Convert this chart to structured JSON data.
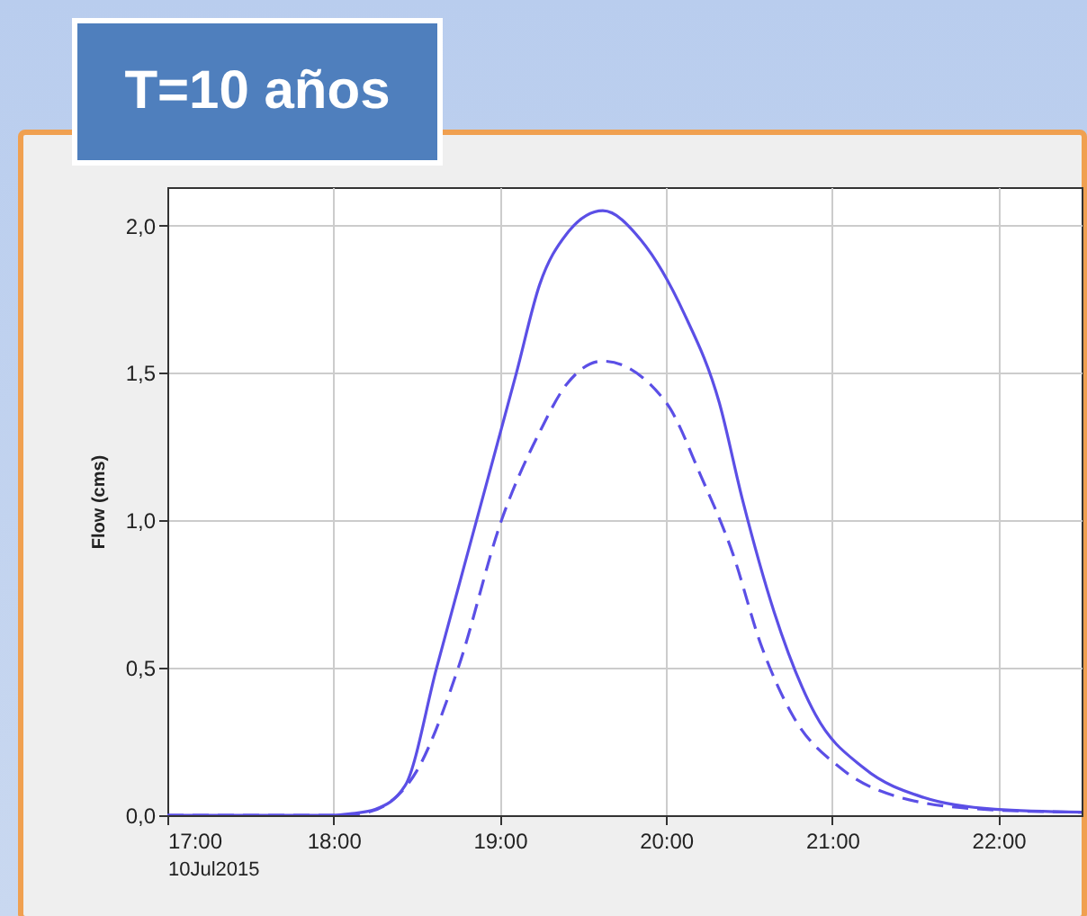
{
  "chart_data": {
    "type": "line",
    "title": "T=10 años",
    "ylabel": "Flow (cms)",
    "xlabel": "10Jul2015",
    "xlim": [
      17,
      22.5
    ],
    "xticks": [
      {
        "value": 17,
        "label": "17:00"
      },
      {
        "value": 18,
        "label": "18:00"
      },
      {
        "value": 19,
        "label": "19:00"
      },
      {
        "value": 20,
        "label": "20:00"
      },
      {
        "value": 21,
        "label": "21:00"
      },
      {
        "value": 22,
        "label": "22:00"
      }
    ],
    "ylim": [
      0,
      2.13
    ],
    "yticks": [
      {
        "value": 0,
        "label": "0,0"
      },
      {
        "value": 0.5,
        "label": "0,5"
      },
      {
        "value": 1,
        "label": "1,0"
      },
      {
        "value": 1.5,
        "label": "1,5"
      },
      {
        "value": 2,
        "label": "2,0"
      }
    ],
    "grid": true,
    "series": [
      {
        "color": "#5b4fe6",
        "line_style": "solid",
        "x": [
          17,
          18,
          18.1,
          18.25,
          18.43,
          18.62,
          18.86,
          19.1,
          19.24,
          19.4,
          19.62,
          19.85,
          20.11,
          20.32,
          20.46,
          20.65,
          20.9,
          21.19,
          21.55,
          21.98,
          22.5
        ],
        "values": [
          0,
          0,
          0.005,
          0.02,
          0.1,
          0.5,
          1.0,
          1.5,
          1.8,
          1.97,
          2.05,
          1.95,
          1.7,
          1.4,
          1.07,
          0.69,
          0.34,
          0.16,
          0.06,
          0.02,
          0.01
        ]
      },
      {
        "color": "#5b4fe6",
        "line_style": "dashed",
        "x": [
          17,
          18,
          18.15,
          18.3,
          18.5,
          18.75,
          19.01,
          19.24,
          19.4,
          19.62,
          20.0,
          20.21,
          20.4,
          20.57,
          20.76,
          21.05,
          21.41,
          21.91,
          22.5
        ],
        "values": [
          0,
          0,
          0.005,
          0.03,
          0.15,
          0.5,
          1.0,
          1.3,
          1.46,
          1.54,
          1.4,
          1.15,
          0.89,
          0.58,
          0.34,
          0.16,
          0.06,
          0.02,
          0.01
        ]
      }
    ]
  }
}
